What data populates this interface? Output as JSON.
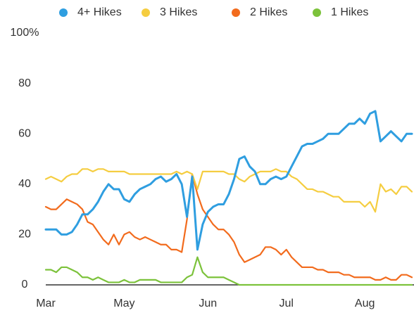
{
  "chart_data": {
    "type": "line",
    "categories": [
      "Mar",
      null,
      null,
      null,
      null,
      null,
      null,
      null,
      null,
      null,
      null,
      null,
      null,
      null,
      null,
      "May",
      null,
      null,
      null,
      null,
      null,
      null,
      null,
      null,
      null,
      null,
      null,
      null,
      null,
      null,
      null,
      "Jun",
      null,
      null,
      null,
      null,
      null,
      null,
      null,
      null,
      null,
      null,
      null,
      null,
      null,
      null,
      "Jul",
      null,
      null,
      null,
      null,
      null,
      null,
      null,
      null,
      null,
      null,
      null,
      null,
      null,
      null,
      "Aug",
      null,
      null,
      null,
      null,
      null,
      null,
      null,
      null,
      null
    ],
    "series": [
      {
        "name": "4+ Hikes",
        "color": "#2f9ee0",
        "values": [
          22,
          22,
          22,
          20,
          20,
          21,
          24,
          28,
          28,
          30,
          33,
          37,
          40,
          38,
          38,
          34,
          33,
          36,
          38,
          39,
          40,
          42,
          43,
          41,
          42,
          44,
          40,
          27,
          43,
          14,
          24,
          29,
          31,
          32,
          32,
          36,
          42,
          50,
          51,
          47,
          45,
          40,
          40,
          42,
          43,
          42,
          43,
          47,
          51,
          55,
          56,
          56,
          57,
          58,
          60,
          60,
          60,
          62,
          64,
          64,
          66,
          64,
          68,
          69,
          57,
          59,
          61,
          59,
          57,
          60,
          60
        ]
      },
      {
        "name": "3 Hikes",
        "color": "#f5cd40",
        "values": [
          42,
          43,
          42,
          41,
          43,
          44,
          44,
          46,
          46,
          45,
          46,
          46,
          45,
          45,
          45,
          45,
          44,
          44,
          44,
          44,
          44,
          44,
          44,
          44,
          44,
          45,
          44,
          45,
          44,
          38,
          45,
          45,
          45,
          45,
          45,
          44,
          44,
          42,
          41,
          43,
          44,
          45,
          45,
          45,
          46,
          45,
          45,
          43,
          42,
          40,
          38,
          38,
          37,
          37,
          36,
          35,
          35,
          33,
          33,
          33,
          33,
          31,
          33,
          29,
          40,
          37,
          38,
          36,
          39,
          39,
          37
        ]
      },
      {
        "name": "2 Hikes",
        "color": "#f26b1d",
        "values": [
          31,
          30,
          30,
          32,
          34,
          33,
          32,
          30,
          25,
          24,
          21,
          18,
          16,
          20,
          16,
          20,
          21,
          19,
          18,
          19,
          18,
          17,
          16,
          16,
          14,
          14,
          13,
          26,
          44,
          36,
          30,
          27,
          24,
          22,
          22,
          20,
          17,
          12,
          9,
          10,
          11,
          12,
          15,
          15,
          14,
          12,
          14,
          11,
          9,
          7,
          7,
          7,
          6,
          6,
          5,
          5,
          5,
          4,
          4,
          3,
          3,
          3,
          3,
          2,
          2,
          3,
          2,
          2,
          4,
          4,
          3
        ]
      },
      {
        "name": "1 Hikes",
        "color": "#7cc23b",
        "values": [
          6,
          6,
          5,
          7,
          7,
          6,
          5,
          3,
          3,
          2,
          3,
          2,
          1,
          1,
          1,
          2,
          1,
          1,
          2,
          2,
          2,
          2,
          1,
          1,
          1,
          1,
          1,
          3,
          4,
          11,
          5,
          3,
          3,
          3,
          3,
          2,
          1,
          0,
          0,
          0,
          0,
          0,
          0,
          0,
          0,
          0,
          0,
          0,
          0,
          0,
          0,
          0,
          0,
          0,
          0,
          0,
          0,
          0,
          0,
          0,
          0,
          0,
          0,
          0,
          0,
          0,
          0,
          0,
          0,
          0,
          0
        ]
      }
    ],
    "ylim": [
      0,
      100
    ],
    "yticks": [
      0,
      20,
      40,
      60,
      80,
      {
        "value": 100,
        "label": "100%"
      }
    ],
    "grid": false,
    "legend": "top"
  }
}
